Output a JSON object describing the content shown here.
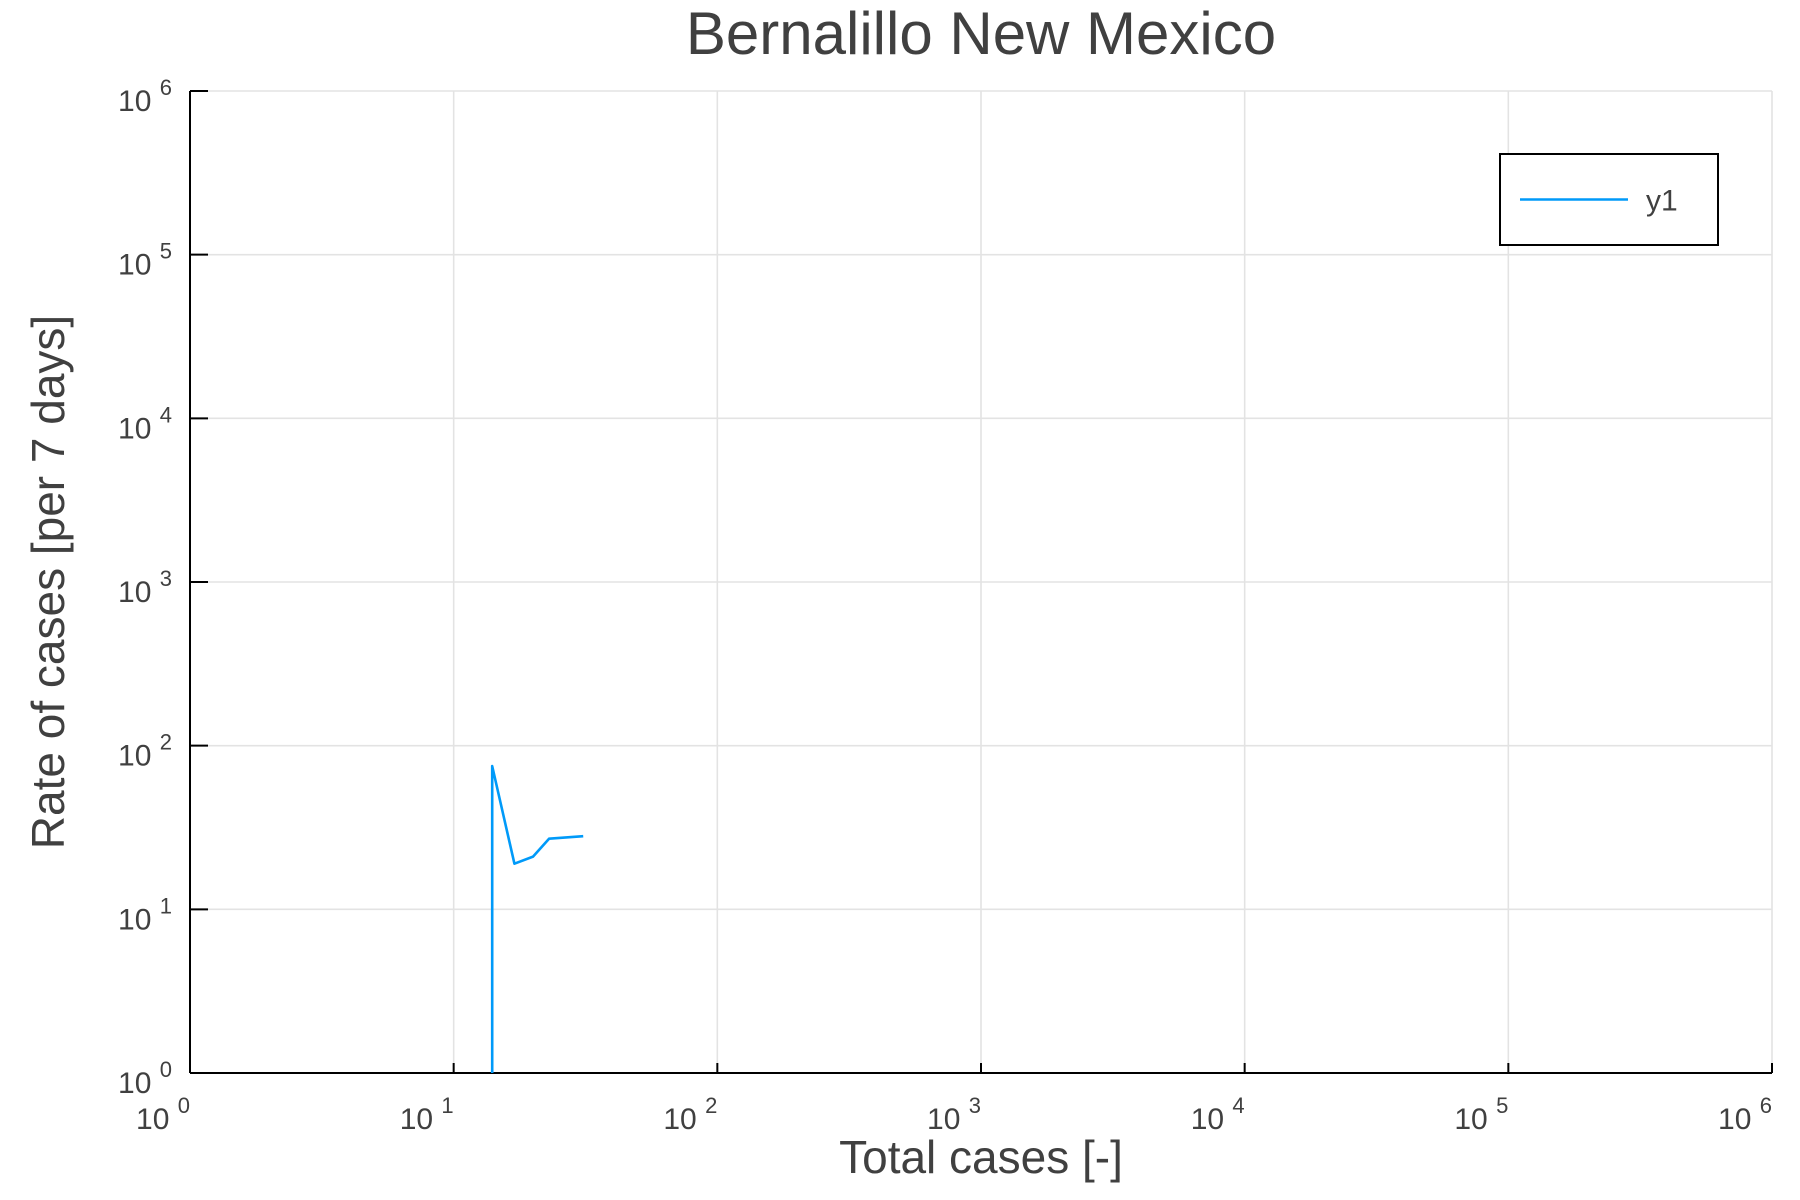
{
  "chart_data": {
    "type": "line",
    "title": "Bernalillo New Mexico",
    "xlabel": "Total cases [-]",
    "ylabel": "Rate of cases [per 7 days]",
    "xscale": "log",
    "yscale": "log",
    "xlim": [
      1,
      1000000
    ],
    "ylim": [
      1,
      1000000
    ],
    "xticks": {
      "base": "10",
      "exponents": [
        "0",
        "1",
        "2",
        "3",
        "4",
        "5",
        "6"
      ]
    },
    "yticks": {
      "base": "10",
      "exponents": [
        "0",
        "1",
        "2",
        "3",
        "4",
        "5",
        "6"
      ]
    },
    "grid": true,
    "legend": {
      "position": "top-right"
    },
    "series": [
      {
        "name": "y1",
        "color": "#009af9",
        "x": [
          14,
          14,
          17,
          20,
          23,
          31
        ],
        "y": [
          1,
          75,
          19,
          21,
          27,
          28
        ]
      }
    ]
  }
}
